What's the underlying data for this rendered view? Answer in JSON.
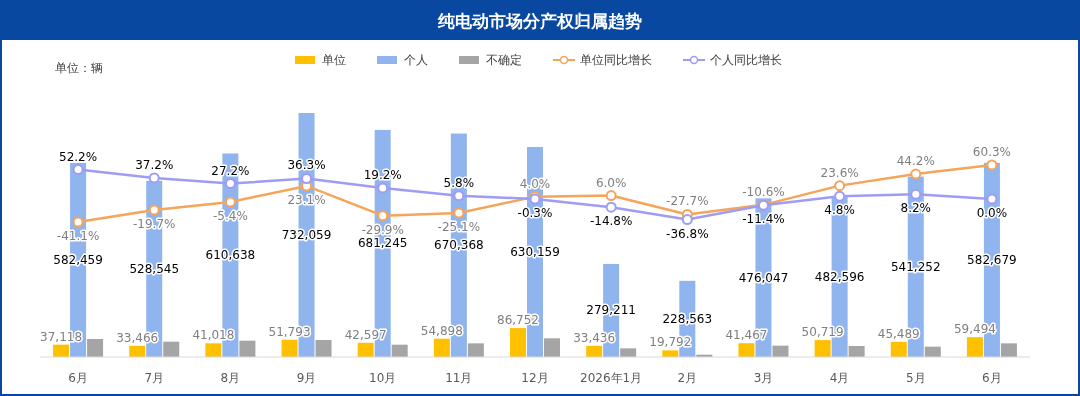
{
  "chart_data": {
    "type": "bar",
    "title": "纯电动市场分产权归属趋势",
    "annotations": [
      "单位：辆"
    ],
    "legend": "top",
    "marker": "circle",
    "categories": [
      "6月",
      "7月",
      "8月",
      "9月",
      "10月",
      "11月",
      "12月",
      "2026年1月",
      "2月",
      "3月",
      "4月",
      "5月",
      "6月"
    ],
    "series": [
      {
        "name": "单位",
        "color": "#ffc000",
        "values": [
          37118,
          33466,
          41018,
          51793,
          42597,
          54898,
          86752,
          33436,
          19792,
          41467,
          50719,
          45489,
          59494
        ],
        "value_labels": [
          "37,118",
          "33,466",
          "41,018",
          "51,793",
          "42,597",
          "54,898",
          "86,752",
          "33,436",
          "19,792",
          "41,467",
          "50,719",
          "45,489",
          "59,494"
        ]
      },
      {
        "name": "个人",
        "color": "#8fb4ee",
        "values": [
          582459,
          528545,
          610638,
          732059,
          681245,
          670368,
          630159,
          279211,
          228563,
          476047,
          482596,
          541252,
          582679
        ],
        "value_labels": [
          "582,459",
          "528,545",
          "610,638",
          "732,059",
          "681,245",
          "670,368",
          "630,159",
          "279,211",
          "228,563",
          "476,047",
          "482,596",
          "541,252",
          "582,679"
        ]
      },
      {
        "name": "不确定",
        "color": "#a5a5a5",
        "values": [
          54000,
          46000,
          49000,
          51000,
          37000,
          41000,
          56000,
          26000,
          7000,
          34000,
          33000,
          31000,
          41000
        ]
      },
      {
        "name": "单位同比增长",
        "type": "line",
        "axis": "y2",
        "color": "#f5a55a",
        "values": [
          -41.1,
          -19.7,
          -5.4,
          23.1,
          -29.9,
          -25.1,
          4.0,
          6.0,
          -27.7,
          -10.6,
          23.6,
          44.2,
          60.3
        ],
        "value_labels": [
          "-41.1%",
          "-19.7%",
          "-5.4%",
          "23.1%",
          "-29.9%",
          "-25.1%",
          "4.0%",
          "6.0%",
          "-27.7%",
          "-10.6%",
          "23.6%",
          "44.2%",
          "60.3%"
        ]
      },
      {
        "name": "个人同比增长",
        "type": "line",
        "axis": "y2",
        "color": "#9e9cf5",
        "values": [
          52.2,
          37.2,
          27.2,
          36.3,
          19.2,
          5.8,
          -0.3,
          -14.8,
          -36.8,
          -11.4,
          4.8,
          8.2,
          0.0
        ],
        "value_labels": [
          "52.2%",
          "37.2%",
          "27.2%",
          "36.3%",
          "19.2%",
          "5.8%",
          "-0.3%",
          "-14.8%",
          "-36.8%",
          "-11.4%",
          "4.8%",
          "8.2%",
          "0.0%"
        ]
      }
    ]
  }
}
